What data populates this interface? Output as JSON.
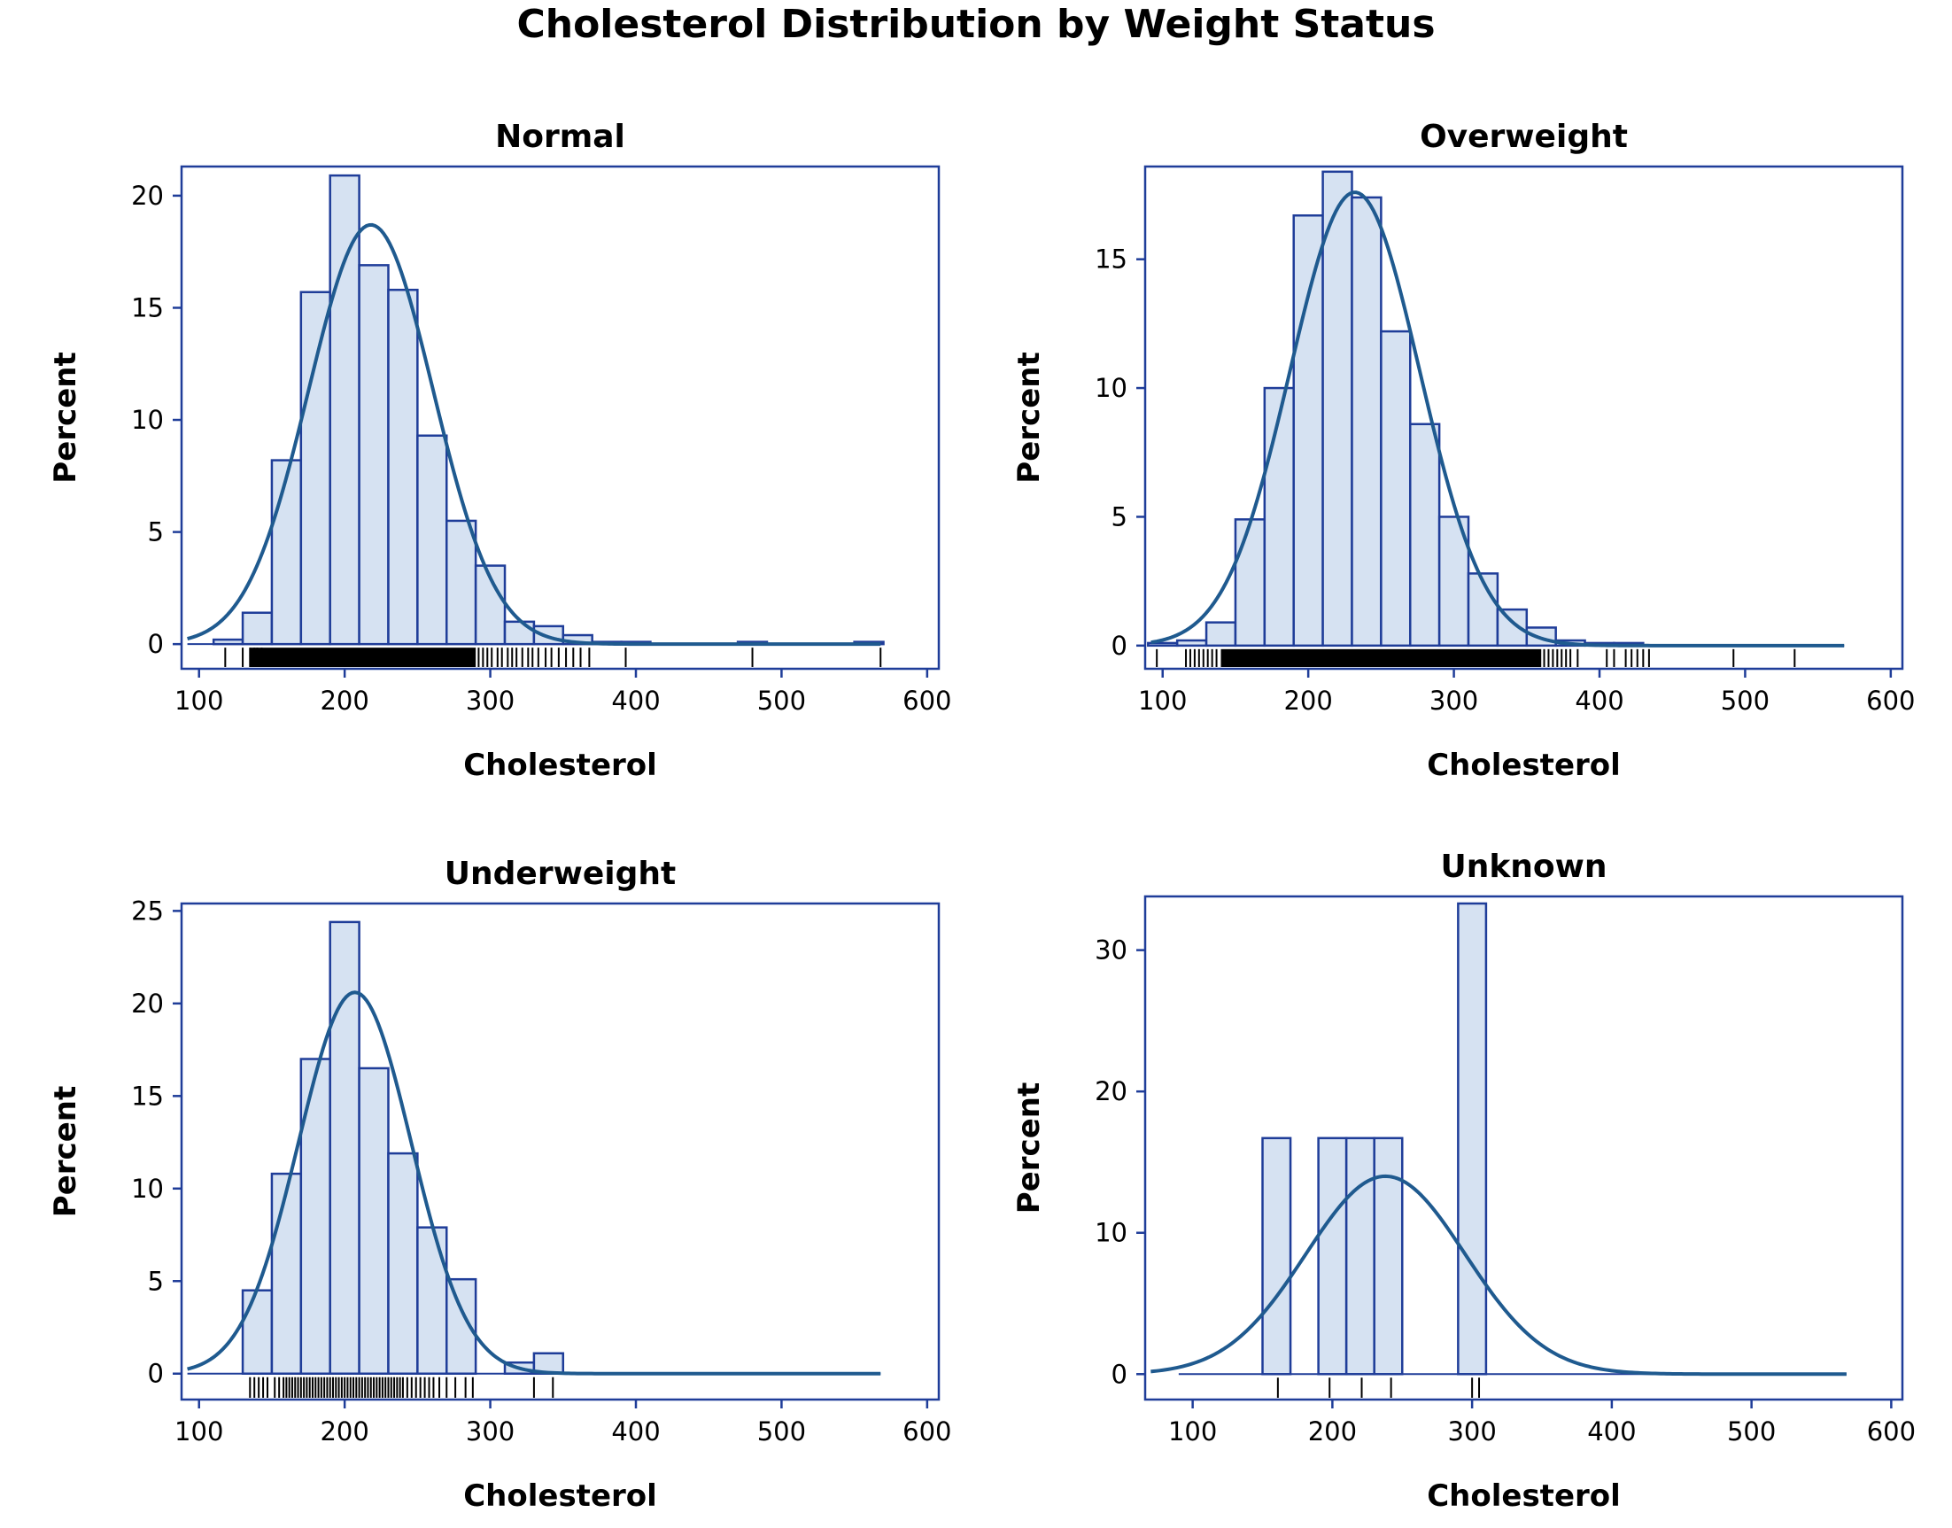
{
  "title": "Cholesterol Distribution by Weight Status",
  "colors": {
    "frame": "#1f3d99",
    "bar_fill": "#d6e2f2",
    "bar_edge": "#1f3d99",
    "curve": "#1f5a8f",
    "rug": "#000000"
  },
  "chart_data": [
    {
      "type": "bar",
      "title": "Normal",
      "xlabel": "Cholesterol",
      "ylabel": "Percent",
      "xlim": [
        88,
        608
      ],
      "ylim": [
        -1.1,
        21.3
      ],
      "xticks": [
        "100",
        "200",
        "300",
        "400",
        "500",
        "600"
      ],
      "xtick_values": [
        100,
        200,
        300,
        400,
        500,
        600
      ],
      "yticks": [
        "0",
        "5",
        "10",
        "15",
        "20"
      ],
      "ytick_values": [
        0,
        5,
        10,
        15,
        20
      ],
      "bin_width": 20,
      "bins": [
        {
          "start": 110,
          "value": 0.2
        },
        {
          "start": 130,
          "value": 1.4
        },
        {
          "start": 150,
          "value": 8.2
        },
        {
          "start": 170,
          "value": 15.7
        },
        {
          "start": 190,
          "value": 20.9
        },
        {
          "start": 210,
          "value": 16.9
        },
        {
          "start": 230,
          "value": 15.8
        },
        {
          "start": 250,
          "value": 9.3
        },
        {
          "start": 270,
          "value": 5.5
        },
        {
          "start": 290,
          "value": 3.5
        },
        {
          "start": 310,
          "value": 1.0
        },
        {
          "start": 330,
          "value": 0.8
        },
        {
          "start": 350,
          "value": 0.4
        },
        {
          "start": 370,
          "value": 0.1
        },
        {
          "start": 390,
          "value": 0.1
        },
        {
          "start": 470,
          "value": 0.1
        },
        {
          "start": 550,
          "value": 0.1
        }
      ],
      "normal_curve": {
        "mean": 218,
        "sd": 42.7,
        "peak": 18.7,
        "x_range": [
          92,
          568
        ]
      },
      "rug": {
        "dense_from": 135,
        "dense_to": 290,
        "points": [
          118,
          130,
          135,
          138,
          140,
          143,
          292,
          295,
          298,
          301,
          305,
          308,
          312,
          315,
          318,
          322,
          326,
          329,
          333,
          338,
          342,
          347,
          352,
          357,
          362,
          368,
          393,
          480,
          568
        ]
      }
    },
    {
      "type": "bar",
      "title": "Overweight",
      "xlabel": "Cholesterol",
      "ylabel": "Percent",
      "xlim": [
        88,
        608
      ],
      "ylim": [
        -0.9,
        18.6
      ],
      "xticks": [
        "100",
        "200",
        "300",
        "400",
        "500",
        "600"
      ],
      "xtick_values": [
        100,
        200,
        300,
        400,
        500,
        600
      ],
      "yticks": [
        "0",
        "5",
        "10",
        "15"
      ],
      "ytick_values": [
        0,
        5,
        10,
        15
      ],
      "bin_width": 20,
      "bins": [
        {
          "start": 90,
          "value": 0.1
        },
        {
          "start": 110,
          "value": 0.2
        },
        {
          "start": 130,
          "value": 0.9
        },
        {
          "start": 150,
          "value": 4.9
        },
        {
          "start": 170,
          "value": 10.0
        },
        {
          "start": 190,
          "value": 16.7
        },
        {
          "start": 210,
          "value": 18.4
        },
        {
          "start": 230,
          "value": 17.4
        },
        {
          "start": 250,
          "value": 12.2
        },
        {
          "start": 270,
          "value": 8.6
        },
        {
          "start": 290,
          "value": 5.0
        },
        {
          "start": 310,
          "value": 2.8
        },
        {
          "start": 330,
          "value": 1.4
        },
        {
          "start": 350,
          "value": 0.7
        },
        {
          "start": 370,
          "value": 0.2
        },
        {
          "start": 390,
          "value": 0.1
        },
        {
          "start": 410,
          "value": 0.1
        }
      ],
      "normal_curve": {
        "mean": 232,
        "sd": 44.5,
        "peak": 17.6,
        "x_range": [
          92,
          568
        ]
      },
      "rug": {
        "dense_from": 140,
        "dense_to": 360,
        "points": [
          96,
          116,
          119,
          122,
          125,
          128,
          131,
          134,
          137,
          362,
          365,
          368,
          371,
          374,
          377,
          380,
          385,
          405,
          410,
          418,
          422,
          426,
          430,
          434,
          492,
          534
        ]
      }
    },
    {
      "type": "bar",
      "title": "Underweight",
      "xlabel": "Cholesterol",
      "ylabel": "Percent",
      "xlim": [
        88,
        608
      ],
      "ylim": [
        -1.4,
        25.4
      ],
      "xticks": [
        "100",
        "200",
        "300",
        "400",
        "500",
        "600"
      ],
      "xtick_values": [
        100,
        200,
        300,
        400,
        500,
        600
      ],
      "yticks": [
        "0",
        "5",
        "10",
        "15",
        "20",
        "25"
      ],
      "ytick_values": [
        0,
        5,
        10,
        15,
        20,
        25
      ],
      "bin_width": 20,
      "bins": [
        {
          "start": 130,
          "value": 4.5
        },
        {
          "start": 150,
          "value": 10.8
        },
        {
          "start": 170,
          "value": 17.0
        },
        {
          "start": 190,
          "value": 24.4
        },
        {
          "start": 210,
          "value": 16.5
        },
        {
          "start": 230,
          "value": 11.9
        },
        {
          "start": 250,
          "value": 7.9
        },
        {
          "start": 270,
          "value": 5.1
        },
        {
          "start": 310,
          "value": 0.6
        },
        {
          "start": 330,
          "value": 1.1
        }
      ],
      "normal_curve": {
        "mean": 207,
        "sd": 38.7,
        "peak": 20.6,
        "x_range": [
          92,
          568
        ]
      },
      "rug": {
        "dense_from": 0,
        "dense_to": 0,
        "points": [
          135,
          138,
          141,
          144,
          147,
          152,
          155,
          158,
          160,
          162,
          164,
          166,
          168,
          170,
          172,
          174,
          176,
          178,
          180,
          182,
          184,
          186,
          188,
          190,
          192,
          194,
          196,
          198,
          200,
          202,
          204,
          206,
          208,
          210,
          212,
          214,
          216,
          218,
          220,
          222,
          224,
          226,
          228,
          230,
          232,
          234,
          236,
          238,
          240,
          243,
          246,
          249,
          252,
          255,
          258,
          261,
          265,
          270,
          276,
          283,
          288,
          330,
          343
        ]
      }
    },
    {
      "type": "bar",
      "title": "Unknown",
      "xlabel": "Cholesterol",
      "ylabel": "Percent",
      "xlim": [
        66,
        608
      ],
      "ylim": [
        -1.8,
        33.8
      ],
      "xticks": [
        "100",
        "200",
        "300",
        "400",
        "500",
        "600"
      ],
      "xtick_values": [
        100,
        200,
        300,
        400,
        500,
        600
      ],
      "yticks": [
        "0",
        "10",
        "20",
        "30"
      ],
      "ytick_values": [
        0,
        10,
        20,
        30
      ],
      "bin_width": 20,
      "bins": [
        {
          "start": 150,
          "value": 16.7
        },
        {
          "start": 190,
          "value": 16.7
        },
        {
          "start": 210,
          "value": 16.7
        },
        {
          "start": 230,
          "value": 16.7
        },
        {
          "start": 290,
          "value": 33.3
        }
      ],
      "normal_curve": {
        "mean": 238,
        "sd": 57,
        "peak": 14.0,
        "x_range": [
          70,
          568
        ]
      },
      "rug": {
        "dense_from": 0,
        "dense_to": 0,
        "points": [
          161,
          198,
          221,
          242,
          300,
          305
        ]
      },
      "baseline_range": [
        90,
        568
      ]
    }
  ]
}
